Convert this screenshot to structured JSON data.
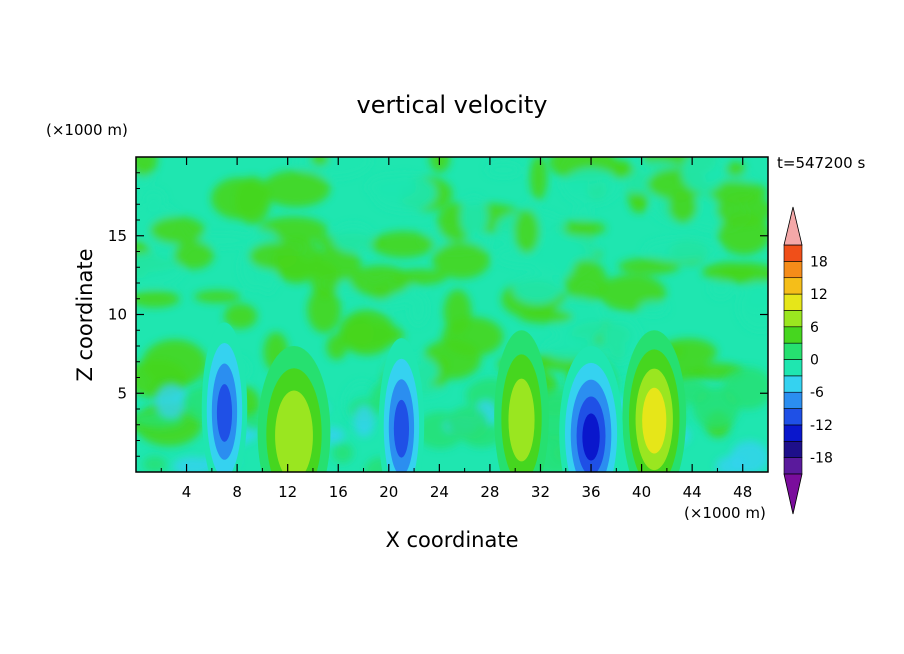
{
  "chart_data": {
    "type": "heatmap",
    "title": "vertical velocity",
    "xlabel": "X coordinate",
    "ylabel": "Z coordinate",
    "x_unit": "(×1000 m)",
    "z_unit": "(×1000 m)",
    "time_label": "t=547200 s",
    "xlim": [
      0,
      50
    ],
    "zlim": [
      0,
      20
    ],
    "x_ticks": [
      4,
      8,
      12,
      16,
      20,
      24,
      28,
      32,
      36,
      40,
      44,
      48
    ],
    "z_ticks": [
      5,
      10,
      15
    ],
    "colorbar": {
      "tick_labels": [
        "18",
        "12",
        "6",
        "0",
        "-6",
        "-12",
        "-18"
      ],
      "tick_values": [
        18,
        12,
        6,
        0,
        -6,
        -12,
        -18
      ],
      "levels": [
        -21,
        -18,
        -15,
        -12,
        -9,
        -6,
        -3,
        0,
        3,
        6,
        9,
        12,
        15,
        18,
        21
      ],
      "colors": [
        "#5a1a9c",
        "#1e0f8a",
        "#0a17cc",
        "#1f50e6",
        "#2b8ef0",
        "#35d2f0",
        "#1fe6b0",
        "#26e070",
        "#46d61f",
        "#9ae620",
        "#e6e619",
        "#f5be19",
        "#f58c19",
        "#f04f19",
        "#e61919"
      ],
      "under_color": "#7a0d9c",
      "over_color": "#f4a8a8"
    },
    "features": [
      {
        "x": 12.5,
        "z": 2.5,
        "w": 0.8,
        "type": "updraft",
        "peak": 11
      },
      {
        "x": 30.5,
        "z": 3.5,
        "w": 0.6,
        "type": "updraft",
        "peak": 10
      },
      {
        "x": 41,
        "z": 3.5,
        "w": 0.7,
        "type": "updraft",
        "peak": 13
      },
      {
        "x": 36,
        "z": 2.5,
        "w": 0.7,
        "type": "downdraft",
        "peak": -15
      },
      {
        "x": 7,
        "z": 4,
        "w": 0.5,
        "type": "downdraft",
        "peak": -12
      },
      {
        "x": 21,
        "z": 3,
        "w": 0.5,
        "type": "downdraft",
        "peak": -12
      }
    ]
  }
}
